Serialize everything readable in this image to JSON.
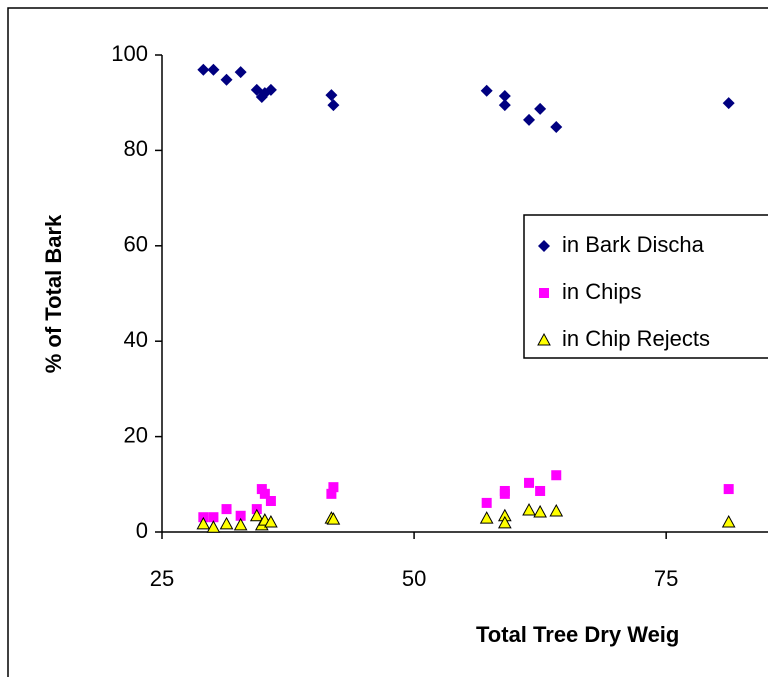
{
  "chart_data": {
    "type": "scatter",
    "x_label": "Total Tree Dry Weig",
    "y_label": "% of Total Bark",
    "x": [
      29.1,
      30.1,
      31.4,
      32.8,
      34.4,
      34.9,
      35.2,
      35.8,
      41.8,
      42.0,
      57.2,
      59.0,
      59.0,
      61.4,
      62.5,
      64.1,
      81.2
    ],
    "series": [
      {
        "name": "in Bark Discha",
        "color": "#000080",
        "marker": "diamond",
        "values": [
          96.9,
          96.9,
          94.8,
          96.4,
          92.7,
          91.2,
          92.0,
          92.7,
          91.6,
          89.5,
          92.5,
          91.4,
          89.5,
          86.4,
          88.7,
          84.9,
          89.9
        ]
      },
      {
        "name": "in Chips",
        "color": "#ff00ff",
        "marker": "square",
        "values": [
          3.1,
          3.1,
          4.8,
          3.4,
          4.8,
          9.0,
          8.0,
          6.5,
          8.0,
          9.4,
          6.1,
          8.0,
          8.6,
          10.3,
          8.6,
          11.9,
          9.0
        ]
      },
      {
        "name": "in Chip Rejects",
        "color": "#ffff00",
        "marker": "triangle",
        "values": [
          1.7,
          1.0,
          1.7,
          1.5,
          3.4,
          1.5,
          2.5,
          2.1,
          2.9,
          2.7,
          2.9,
          3.4,
          1.9,
          4.6,
          4.2,
          4.4,
          2.1
        ]
      }
    ],
    "xlim": [
      25,
      85
    ],
    "xticks": [
      25,
      50,
      75
    ],
    "ylim": [
      0,
      100
    ],
    "yticks": [
      0,
      20,
      40,
      60,
      80,
      100
    ],
    "grid": false
  }
}
